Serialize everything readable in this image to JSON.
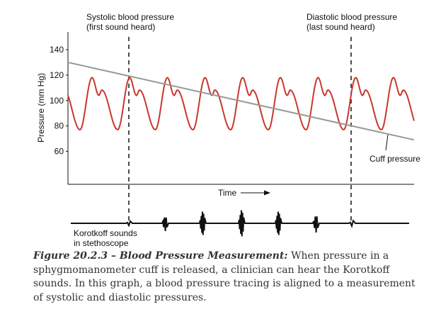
{
  "chart_data": {
    "type": "line",
    "y_label": "Pressure (mm Hg)",
    "ylim": [
      34,
      154
    ],
    "yticks": [
      60,
      80,
      100,
      120,
      140
    ],
    "x_label": "Time",
    "annotations": {
      "systolic": [
        "Systolic blood pressure",
        "(first sound heard)"
      ],
      "diastolic": [
        "Diastolic blood pressure",
        "(last sound heard)"
      ],
      "korotkoff": [
        "Korotkoff sounds",
        "in stethoscope"
      ]
    },
    "cuff_pressure": {
      "label": "Cuff pressure",
      "start": 130,
      "end": 69,
      "color": "#999999"
    },
    "pressure_wave": {
      "peak": 118,
      "notch": 104,
      "trough": 77,
      "beats": 9,
      "color": "#c8372d"
    }
  },
  "caption": {
    "label": "Figure 20.2.3 – Blood Pressure Measurement:",
    "text": "When pressure in a sphygmomanometer cuff is released, a clinician can hear the Korotkoff sounds. In this graph, a blood pressure tracing is aligned to a measurement of systolic and diastolic pressures."
  }
}
